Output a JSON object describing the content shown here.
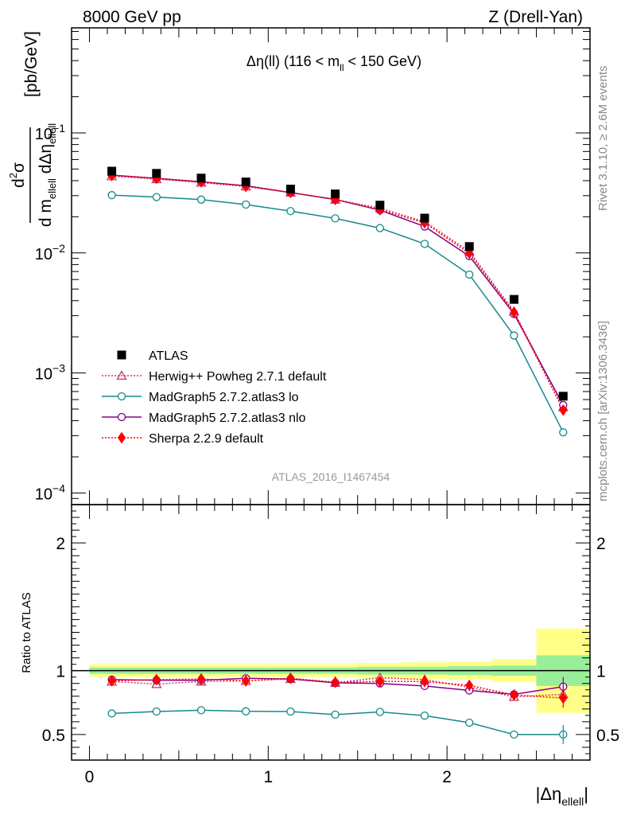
{
  "header": {
    "left": "8000 GeV pp",
    "right": "Z (Drell-Yan)"
  },
  "side_labels": {
    "rivet": "Rivet 3.1.10, ≥ 2.6M events",
    "mcplots": "mcplots.cern.ch [arXiv:1306.3436]"
  },
  "chart_data": {
    "type": "scatter",
    "title": "Δη(ll) (116 < m_ll < 150 GeV)",
    "title_parts": {
      "main": "Δη(ll) (116 < m",
      "sub": "ll",
      "tail": " < 150 GeV)"
    },
    "analysis_tag": "ATLAS_2016_I1467454",
    "xlabel": "|Δη_ellell|",
    "ylabel": "d²σ / d m_ellell dΔη_ellell [pb/GeV]",
    "ratio_ylabel": "Ratio to ATLAS",
    "xlim": [
      -0.1,
      2.8
    ],
    "ylim": [
      8e-05,
      0.75
    ],
    "yscale": "log",
    "ratio_ylim": [
      0.3,
      2.3
    ],
    "x_ticks": [
      0,
      1,
      2
    ],
    "x_tick_labels": [
      "0",
      "1",
      "2"
    ],
    "y_ticks": [
      0.1,
      0.01,
      0.001,
      0.0001
    ],
    "y_tick_labels": [
      {
        "base": "10",
        "exp": "−1"
      },
      {
        "base": "10",
        "exp": "−2"
      },
      {
        "base": "10",
        "exp": "−3"
      },
      {
        "base": "10",
        "exp": "−4"
      }
    ],
    "ratio_y_ticks": [
      0.5,
      1,
      2
    ],
    "ratio_y_tick_labels": [
      "0.5",
      "1",
      "2"
    ],
    "bin_edges": [
      0,
      0.25,
      0.5,
      0.75,
      1.0,
      1.25,
      1.5,
      1.75,
      2.0,
      2.25,
      2.5,
      2.8
    ],
    "x": [
      0.125,
      0.375,
      0.625,
      0.875,
      1.125,
      1.375,
      1.625,
      1.875,
      2.125,
      2.375,
      2.65
    ],
    "data": {
      "name": "ATLAS",
      "values": [
        0.048,
        0.046,
        0.042,
        0.039,
        0.034,
        0.031,
        0.025,
        0.0195,
        0.0113,
        0.0041,
        0.00064
      ],
      "band_inner": [
        0.025,
        0.025,
        0.025,
        0.025,
        0.025,
        0.025,
        0.03,
        0.03,
        0.035,
        0.04,
        0.12
      ],
      "band_outer": [
        0.05,
        0.05,
        0.05,
        0.05,
        0.05,
        0.05,
        0.06,
        0.065,
        0.07,
        0.09,
        0.33
      ]
    },
    "series": [
      {
        "name": "Herwig++ Powheg 2.7.1 default",
        "color": "#cc3366",
        "marker": "triangle-open",
        "line": "dotted",
        "values": [
          0.0436,
          0.0412,
          0.0385,
          0.0358,
          0.0318,
          0.0278,
          0.0236,
          0.0182,
          0.0103,
          0.00325,
          0.00052
        ],
        "ratio": [
          0.915,
          0.895,
          0.915,
          0.92,
          0.935,
          0.905,
          0.945,
          0.93,
          0.87,
          0.795,
          0.815
        ]
      },
      {
        "name": "MadGraph5 2.7.2.atlas3 lo",
        "color": "#188888",
        "marker": "circle-open",
        "line": "solid",
        "values": [
          0.0303,
          0.0292,
          0.0278,
          0.0253,
          0.0223,
          0.0194,
          0.0161,
          0.0119,
          0.0066,
          0.00205,
          0.00032
        ],
        "ratio": [
          0.665,
          0.68,
          0.69,
          0.682,
          0.68,
          0.656,
          0.677,
          0.648,
          0.593,
          0.5,
          0.5
        ]
      },
      {
        "name": "MadGraph5 2.7.2.atlas3 nlo",
        "color": "#880088",
        "marker": "circle-open",
        "line": "solid",
        "values": [
          0.0445,
          0.0418,
          0.0391,
          0.0363,
          0.0318,
          0.0279,
          0.0227,
          0.0166,
          0.0094,
          0.0031,
          0.00054
        ],
        "ratio": [
          0.93,
          0.925,
          0.925,
          0.94,
          0.935,
          0.905,
          0.9,
          0.88,
          0.845,
          0.815,
          0.875
        ]
      },
      {
        "name": "Sherpa 2.2.9 default",
        "color": "#ff0000",
        "marker": "diamond-filled",
        "line": "dotted",
        "values": [
          0.0442,
          0.0419,
          0.0392,
          0.0358,
          0.0319,
          0.0279,
          0.0229,
          0.0178,
          0.0099,
          0.0032,
          0.00049
        ],
        "ratio": [
          0.92,
          0.93,
          0.935,
          0.92,
          0.94,
          0.91,
          0.915,
          0.915,
          0.885,
          0.81,
          0.785
        ]
      }
    ],
    "legend": {
      "placement": "lower-left",
      "entries": [
        "ATLAS",
        "Herwig++ Powheg 2.7.1 default",
        "MadGraph5 2.7.2.atlas3 lo",
        "MadGraph5 2.7.2.atlas3 nlo",
        "Sherpa 2.2.9 default"
      ]
    },
    "colors": {
      "band_inner": "#99ee99",
      "band_outer": "#ffff88",
      "data": "#000000",
      "frame": "#000000"
    }
  }
}
